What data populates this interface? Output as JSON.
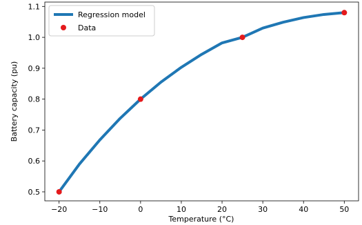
{
  "chart_data": {
    "type": "line",
    "title": "",
    "xlabel": "Temperature (°C)",
    "ylabel": "Battery capacity (pu)",
    "xlim": [
      -23.5,
      53.5
    ],
    "ylim": [
      0.4709,
      1.1141
    ],
    "xticks": [
      -20,
      -10,
      0,
      10,
      20,
      30,
      40,
      50
    ],
    "xtick_labels": [
      "−20",
      "−10",
      "0",
      "10",
      "20",
      "30",
      "40",
      "50"
    ],
    "yticks": [
      0.5,
      0.6,
      0.7,
      0.8,
      0.9,
      1.0,
      1.1
    ],
    "ytick_labels": [
      "0.5",
      "0.6",
      "0.7",
      "0.8",
      "0.9",
      "1.0",
      "1.1"
    ],
    "grid": false,
    "legend_position": "top-left",
    "series": [
      {
        "name": "Regression model",
        "kind": "line",
        "color": "#1f77b4",
        "x": [
          -20,
          -15,
          -10,
          -5,
          0,
          5,
          10,
          15,
          20,
          25,
          30,
          35,
          40,
          45,
          50
        ],
        "y": [
          0.5,
          0.59,
          0.668,
          0.738,
          0.8,
          0.855,
          0.903,
          0.945,
          0.982,
          1.0,
          1.03,
          1.049,
          1.064,
          1.074,
          1.08
        ]
      },
      {
        "name": "Data",
        "kind": "scatter",
        "color": "#e41a1c",
        "x": [
          -20,
          0,
          25,
          50
        ],
        "y": [
          0.5,
          0.8,
          1.0,
          1.08
        ]
      }
    ]
  }
}
